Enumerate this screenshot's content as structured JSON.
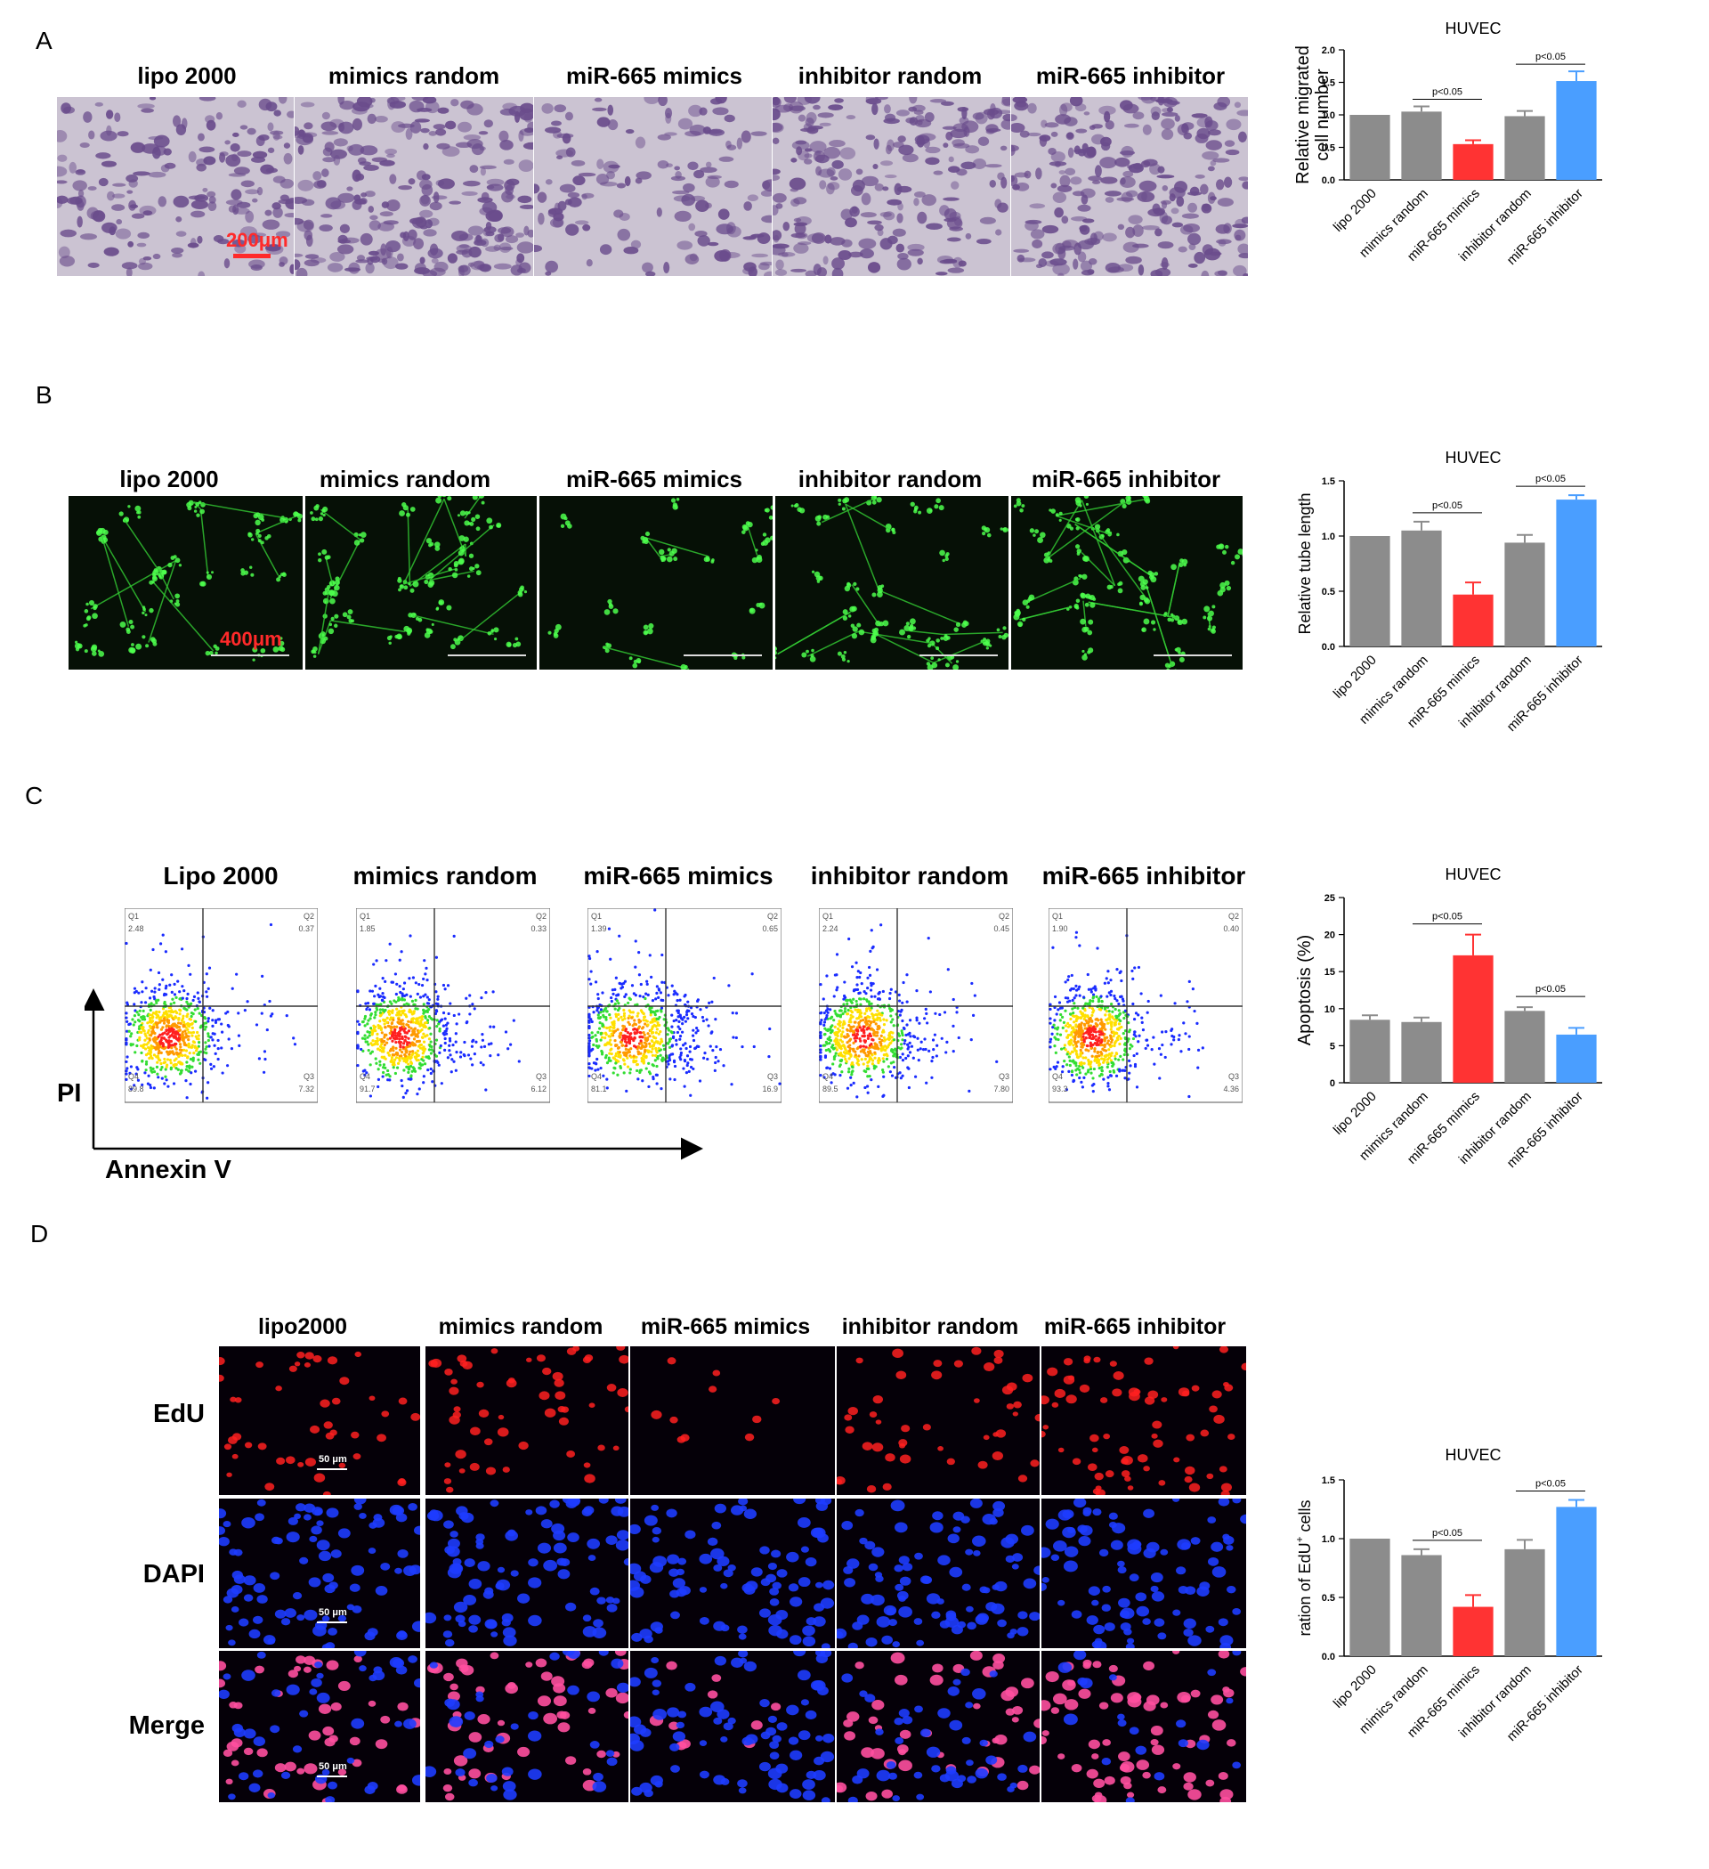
{
  "panels": {
    "A": {
      "letter": "A",
      "conditions": [
        "lipo 2000",
        "mimics random",
        "miR-665 mimics",
        "inhibitor random",
        "miR-665 inhibitor"
      ],
      "scale_bar": "200μm"
    },
    "B": {
      "letter": "B",
      "conditions": [
        "lipo 2000",
        "mimics random",
        "miR-665 mimics",
        "inhibitor random",
        "miR-665 inhibitor"
      ],
      "scale_bar": "400μm"
    },
    "C": {
      "letter": "C",
      "conditions": [
        "Lipo 2000",
        "mimics random",
        "miR-665 mimics",
        "inhibitor random",
        "miR-665 inhibitor"
      ],
      "y_axis_word": "PI",
      "x_axis_word": "Annexin V",
      "flow_quadrants": [
        {
          "Q1": "2.48",
          "Q2": "0.37",
          "Q3": "7.32",
          "Q4": "89.8"
        },
        {
          "Q1": "1.85",
          "Q2": "0.33",
          "Q3": "6.12",
          "Q4": "91.7"
        },
        {
          "Q1": "1.39",
          "Q2": "0.65",
          "Q3": "16.9",
          "Q4": "81.1"
        },
        {
          "Q1": "2.24",
          "Q2": "0.45",
          "Q3": "7.80",
          "Q4": "89.5"
        },
        {
          "Q1": "1.90",
          "Q2": "0.40",
          "Q3": "4.36",
          "Q4": "93.3"
        }
      ]
    },
    "D": {
      "letter": "D",
      "conditions": [
        "lipo2000",
        "mimics random",
        "miR-665 mimics",
        "inhibitor random",
        "miR-665 inhibitor"
      ],
      "rows": [
        "EdU",
        "DAPI",
        "Merge"
      ],
      "scale_bar": "50 μm"
    }
  },
  "colors": {
    "gray_bar": "#8c8c8c",
    "red_bar": "#ff3333",
    "blue_bar": "#4a9eff",
    "migration_stain": "#6a4c8c",
    "tube_green": "#33cc33",
    "edu_red": "#ff2020",
    "dapi_blue": "#1e3cff",
    "merge_pink": "#ff4fa0"
  },
  "chart_data": [
    {
      "type": "bar",
      "title": "HUVEC",
      "ylabel": "Relative migrated cell number",
      "categories": [
        "lipo 2000",
        "mimics random",
        "miR-665 mimics",
        "inhibitor random",
        "miR-665 inhibitor"
      ],
      "values": [
        1.0,
        1.05,
        0.55,
        0.98,
        1.52
      ],
      "errors": [
        0.0,
        0.08,
        0.06,
        0.08,
        0.15
      ],
      "bar_colors": [
        "gray",
        "gray",
        "red",
        "gray",
        "blue"
      ],
      "ylim": [
        0,
        2.0
      ],
      "yticks": [
        "0.0",
        "0.5",
        "1.0",
        "1.5",
        "2.0"
      ],
      "significance": [
        {
          "from": 1,
          "to": 2,
          "label": "p<0.05"
        },
        {
          "from": 3,
          "to": 4,
          "label": "p<0.05"
        }
      ]
    },
    {
      "type": "bar",
      "title": "HUVEC",
      "ylabel": "Relative tube length",
      "categories": [
        "lipo 2000",
        "mimics random",
        "miR-665 mimics",
        "inhibitor random",
        "miR-665 inhibitor"
      ],
      "values": [
        1.0,
        1.05,
        0.47,
        0.94,
        1.33
      ],
      "errors": [
        0.0,
        0.08,
        0.11,
        0.07,
        0.04
      ],
      "bar_colors": [
        "gray",
        "gray",
        "red",
        "gray",
        "blue"
      ],
      "ylim": [
        0,
        1.5
      ],
      "yticks": [
        "0.0",
        "0.5",
        "1.0",
        "1.5"
      ],
      "significance": [
        {
          "from": 1,
          "to": 2,
          "label": "p<0.05"
        },
        {
          "from": 3,
          "to": 4,
          "label": "p<0.05"
        }
      ]
    },
    {
      "type": "bar",
      "title": "HUVEC",
      "ylabel": "Apoptosis (%)",
      "categories": [
        "lipo 2000",
        "mimics random",
        "miR-665 mimics",
        "inhibitor random",
        "miR-665 inhibitor"
      ],
      "values": [
        8.5,
        8.2,
        17.2,
        9.7,
        6.5
      ],
      "errors": [
        0.6,
        0.6,
        2.8,
        0.5,
        0.9
      ],
      "bar_colors": [
        "gray",
        "gray",
        "red",
        "gray",
        "blue"
      ],
      "ylim": [
        0,
        25
      ],
      "yticks": [
        "0",
        "5",
        "10",
        "15",
        "20",
        "25"
      ],
      "significance": [
        {
          "from": 1,
          "to": 2,
          "label": "p<0.05"
        },
        {
          "from": 3,
          "to": 4,
          "label": "p<0.05"
        }
      ]
    },
    {
      "type": "bar",
      "title": "HUVEC",
      "ylabel": "ration of EdU",
      "ylabel_superscript": "+",
      "ylabel_suffix": " cells",
      "categories": [
        "lipo 2000",
        "mimics random",
        "miR-665 mimics",
        "inhibitor random",
        "miR-665 inhibitor"
      ],
      "values": [
        1.0,
        0.86,
        0.42,
        0.91,
        1.27
      ],
      "errors": [
        0.0,
        0.05,
        0.1,
        0.08,
        0.06
      ],
      "bar_colors": [
        "gray",
        "gray",
        "red",
        "gray",
        "blue"
      ],
      "ylim": [
        0,
        1.5
      ],
      "yticks": [
        "0.0",
        "0.5",
        "1.0",
        "1.5"
      ],
      "significance": [
        {
          "from": 1,
          "to": 2,
          "label": "p<0.05"
        },
        {
          "from": 3,
          "to": 4,
          "label": "p<0.05"
        }
      ]
    }
  ]
}
